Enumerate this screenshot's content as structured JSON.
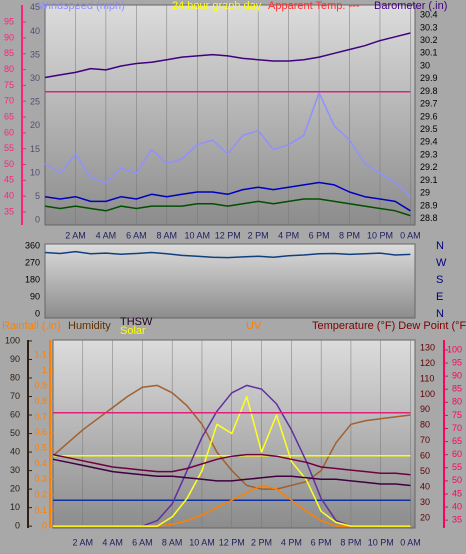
{
  "chart_data": [
    {
      "type": "line",
      "labels": [
        {
          "text": "Windspeed (mph)",
          "color": "#8c8cff"
        },
        {
          "text": "24 hour graph day",
          "color": "#ffff00"
        },
        {
          "text": "Apparent Temp. ---",
          "color": "#ff3030"
        },
        {
          "text": "Barometer (.in)",
          "color": "#400080"
        }
      ],
      "x": [
        0,
        1,
        2,
        3,
        4,
        5,
        6,
        7,
        8,
        9,
        10,
        11,
        12,
        13,
        14,
        15,
        16,
        17,
        18,
        19,
        20,
        21,
        22,
        23,
        24
      ],
      "xlim": [
        0,
        24.3
      ],
      "xticks": [
        {
          "value": 2,
          "label": "2 AM"
        },
        {
          "value": 4,
          "label": "4 AM"
        },
        {
          "value": 6,
          "label": "6 AM"
        },
        {
          "value": 8,
          "label": "8 AM"
        },
        {
          "value": 10,
          "label": "10 AM"
        },
        {
          "value": 12,
          "label": "12 PM"
        },
        {
          "value": 14,
          "label": "2 PM"
        },
        {
          "value": 16,
          "label": "4 PM"
        },
        {
          "value": 18,
          "label": "6 PM"
        },
        {
          "value": 20,
          "label": "8 PM"
        },
        {
          "value": 22,
          "label": "10 PM"
        },
        {
          "value": 24,
          "label": "0 AM"
        }
      ],
      "grid": true,
      "axes": [
        {
          "side": "left-outer",
          "ylim": [
            30.9,
            100.4
          ],
          "yticks": [
            35,
            40,
            45,
            50,
            55,
            60,
            65,
            70,
            75,
            80,
            85,
            90,
            95
          ],
          "color": "#ff2080"
        },
        {
          "side": "left",
          "ylim": [
            -1,
            45.6
          ],
          "yticks": [
            0,
            5,
            10,
            15,
            20,
            25,
            30,
            35,
            40,
            45
          ],
          "color": "#505070"
        },
        {
          "side": "right",
          "ylim": [
            28.75,
            30.48
          ],
          "yticks": [
            28.8,
            28.9,
            29,
            29.1,
            29.2,
            29.3,
            29.4,
            29.5,
            29.6,
            29.7,
            29.8,
            29.9,
            30,
            30.1,
            30.2,
            30.3,
            30.4
          ],
          "color": "#000000"
        }
      ],
      "series": [
        {
          "axis": 1,
          "color": "#9090ff",
          "values": [
            12,
            10,
            14,
            9,
            8,
            11,
            10,
            15,
            12,
            13,
            16,
            17,
            14,
            18,
            19,
            15,
            16,
            18,
            27,
            20,
            17,
            12,
            10,
            8,
            5
          ]
        },
        {
          "axis": 1,
          "color": "#0000c0",
          "values": [
            5,
            4.5,
            5,
            4,
            4,
            5,
            4.5,
            5.5,
            5,
            5.5,
            6,
            6,
            5.5,
            6.5,
            7,
            6.5,
            7,
            7.5,
            8,
            7.5,
            6,
            5,
            4.5,
            4,
            2
          ]
        },
        {
          "axis": 1,
          "color": "#005000",
          "values": [
            3,
            2.5,
            3,
            2.5,
            2,
            3,
            2.5,
            3,
            3,
            3,
            3.5,
            3.5,
            3,
            3.5,
            4,
            3.5,
            4,
            4.5,
            4.5,
            4,
            3.5,
            3,
            2.5,
            2,
            1
          ]
        },
        {
          "axis": 2,
          "color": "#400080",
          "values": [
            29.91,
            29.93,
            29.95,
            29.98,
            29.97,
            30,
            30.02,
            30.03,
            30.05,
            30.07,
            30.08,
            30.09,
            30.08,
            30.06,
            30.05,
            30.04,
            30.04,
            30.05,
            30.07,
            30.1,
            30.13,
            30.16,
            30.2,
            30.23,
            30.26
          ]
        },
        {
          "axis": 0,
          "color": "#e0207a",
          "values": [
            73,
            73,
            73,
            73,
            73,
            73,
            73,
            73,
            73,
            73,
            73,
            73,
            73,
            73,
            73,
            73,
            73,
            73,
            73,
            73,
            73,
            73,
            73,
            73,
            73
          ]
        }
      ]
    },
    {
      "type": "line",
      "x": [
        0,
        1,
        2,
        3,
        4,
        5,
        6,
        7,
        8,
        9,
        10,
        11,
        12,
        13,
        14,
        15,
        16,
        17,
        18,
        19,
        20,
        21,
        22,
        23,
        24
      ],
      "xlim": [
        0,
        24.3
      ],
      "axes": [
        {
          "side": "left",
          "ylim": [
            -21,
            370
          ],
          "yticks": [
            0,
            90,
            180,
            270,
            360
          ],
          "color": "#000000"
        }
      ],
      "compass": [
        "N",
        "E",
        "S",
        "W",
        "N"
      ],
      "series": [
        {
          "axis": 0,
          "color": "#104080",
          "values": [
            325,
            320,
            330,
            318,
            322,
            316,
            320,
            325,
            318,
            310,
            305,
            300,
            298,
            302,
            305,
            300,
            308,
            312,
            318,
            320,
            315,
            318,
            322,
            312,
            315
          ]
        }
      ]
    },
    {
      "type": "line",
      "labels": [
        {
          "text": "Rainfall (.in)",
          "color": "#ff8000"
        },
        {
          "text": "Humidity",
          "color": "#603000"
        },
        {
          "text": "THSW",
          "color": "#200020"
        },
        {
          "text": "Solar",
          "color": "#ffff00"
        },
        {
          "text": "UV",
          "color": "#ff8000"
        },
        {
          "text": "Temperature (°F) Dew Point (°F)",
          "color": "#800000"
        }
      ],
      "x": [
        0,
        1,
        2,
        3,
        4,
        5,
        6,
        7,
        8,
        9,
        10,
        11,
        12,
        13,
        14,
        15,
        16,
        17,
        18,
        19,
        20,
        21,
        22,
        23,
        24
      ],
      "xlim": [
        0,
        24.3
      ],
      "xticks": [
        {
          "value": 2,
          "label": "2 AM"
        },
        {
          "value": 4,
          "label": "4 AM"
        },
        {
          "value": 6,
          "label": "6 AM"
        },
        {
          "value": 8,
          "label": "8 AM"
        },
        {
          "value": 10,
          "label": "10 AM"
        },
        {
          "value": 12,
          "label": "12 PM"
        },
        {
          "value": 14,
          "label": "2 PM"
        },
        {
          "value": 16,
          "label": "4 PM"
        },
        {
          "value": 18,
          "label": "6 PM"
        },
        {
          "value": 20,
          "label": "8 PM"
        },
        {
          "value": 22,
          "label": "10 PM"
        },
        {
          "value": 24,
          "label": "0 AM"
        }
      ],
      "grid": true,
      "axes": [
        {
          "side": "left-outer",
          "ylim": [
            -1,
            100.5
          ],
          "yticks": [
            0,
            10,
            20,
            30,
            40,
            50,
            60,
            70,
            80,
            90,
            100
          ],
          "color": "#302010"
        },
        {
          "side": "left",
          "ylim": [
            -0.013,
            1.196
          ],
          "yticks": [
            0,
            0.1,
            0.2,
            0.3,
            0.4,
            0.5,
            0.6,
            0.7,
            0.8,
            0.9,
            1,
            1.1
          ],
          "color": "#ff8000"
        },
        {
          "side": "right",
          "ylim": [
            13.5,
            135.2
          ],
          "yticks": [
            20,
            30,
            40,
            50,
            60,
            70,
            80,
            90,
            100,
            110,
            120,
            130
          ],
          "color": "#600000"
        },
        {
          "side": "right-outer",
          "ylim": [
            32,
            103.8
          ],
          "yticks": [
            35,
            40,
            45,
            50,
            55,
            60,
            65,
            70,
            75,
            80,
            85,
            90,
            95,
            100
          ],
          "color": "#ff0060"
        }
      ],
      "series": [
        {
          "axis": 0,
          "color": "#a06030",
          "values": [
            38,
            45,
            52,
            58,
            64,
            70,
            75,
            76,
            72,
            65,
            55,
            40,
            30,
            22,
            20,
            20,
            22,
            24,
            30,
            45,
            55,
            57,
            58,
            59,
            60
          ]
        },
        {
          "axis": 0,
          "color": "#ffff00",
          "values": [
            38,
            38,
            38,
            38,
            38,
            38,
            38,
            38,
            38,
            38,
            38,
            38,
            38,
            38,
            38,
            38,
            38,
            38,
            38,
            38,
            38,
            38,
            38,
            38,
            38
          ]
        },
        {
          "axis": 0,
          "color": "#1030a0",
          "values": [
            14,
            14,
            14,
            14,
            14,
            14,
            14,
            14,
            14,
            14,
            14,
            14,
            14,
            14,
            14,
            14,
            14,
            14,
            14,
            14,
            14,
            14,
            14,
            14,
            14
          ]
        },
        {
          "axis": 0,
          "color": "#6030a0",
          "values": [
            0,
            0,
            0,
            0,
            0,
            0,
            0,
            3,
            12,
            30,
            48,
            62,
            72,
            76,
            74,
            66,
            52,
            35,
            15,
            3,
            0,
            0,
            0,
            0,
            0
          ]
        },
        {
          "axis": 0,
          "color": "#ff8000",
          "values": [
            0,
            0,
            0,
            0,
            0,
            0,
            0,
            0,
            1,
            3,
            6,
            10,
            14,
            18,
            22,
            20,
            14,
            8,
            3,
            0,
            0,
            0,
            0,
            0,
            0
          ]
        },
        {
          "axis": 0,
          "color": "#ffff20",
          "values": [
            0,
            0,
            0,
            0,
            0,
            0,
            0,
            0,
            5,
            15,
            30,
            55,
            50,
            70,
            40,
            60,
            35,
            25,
            8,
            2,
            0,
            0,
            0,
            0,
            0
          ]
        },
        {
          "axis": 2,
          "color": "#400040",
          "values": [
            58,
            56,
            54,
            52,
            50,
            49,
            48,
            47,
            47,
            46,
            45,
            44,
            44,
            45,
            46,
            47,
            47,
            46,
            45,
            45,
            44,
            43,
            42,
            42,
            41
          ]
        },
        {
          "axis": 2,
          "color": "#700040",
          "values": [
            61,
            59,
            57,
            55,
            53,
            52,
            51,
            50,
            50,
            52,
            55,
            58,
            60,
            61,
            61,
            60,
            58,
            56,
            53,
            52,
            51,
            50,
            49,
            49,
            48
          ]
        },
        {
          "axis": 3,
          "color": "#e0207a",
          "values": [
            76,
            76,
            76,
            76,
            76,
            76,
            76,
            76,
            76,
            76,
            76,
            76,
            76,
            76,
            76,
            76,
            76,
            76,
            76,
            76,
            76,
            76,
            76,
            76,
            76
          ]
        }
      ]
    }
  ]
}
